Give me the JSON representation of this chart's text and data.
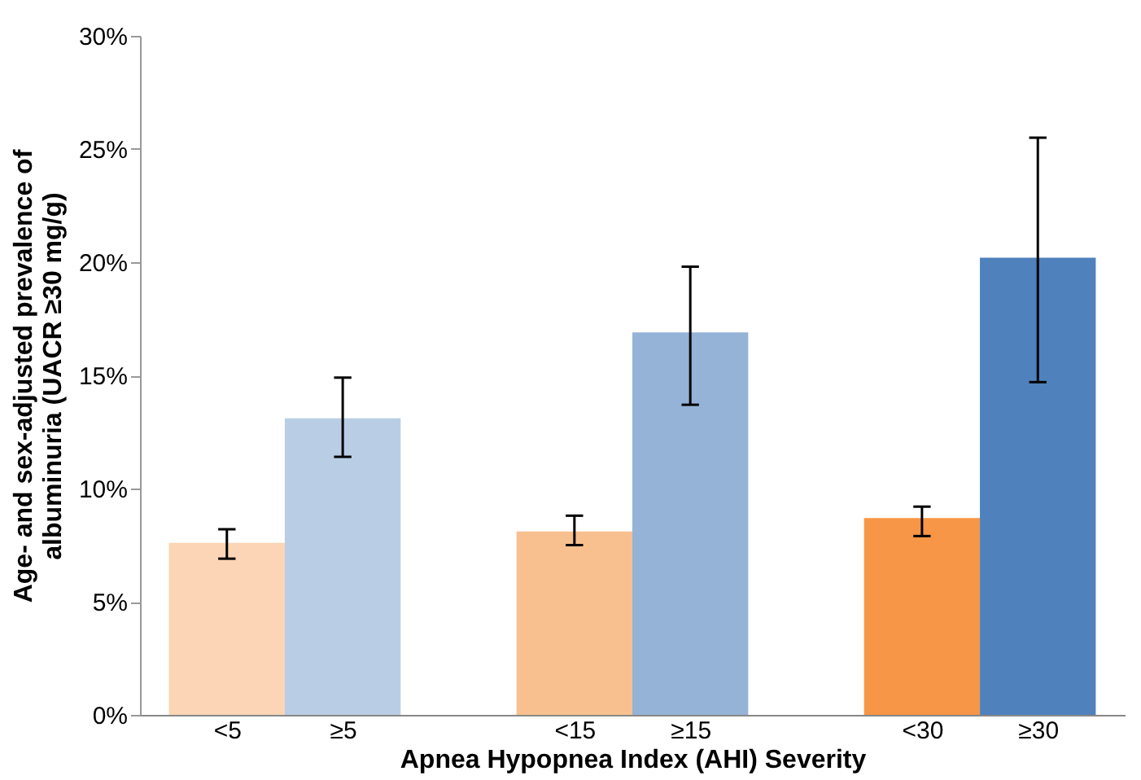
{
  "chart_data": {
    "type": "bar",
    "xlabel": "Apnea Hypopnea Index (AHI) Severity",
    "ylabel": "Age- and sex-adjusted prevalence of\nalbuminuria (UACR ≥30 mg/g)",
    "categories": [
      "<5",
      "≥5",
      "<15",
      "≥15",
      "<30",
      "≥30"
    ],
    "values": [
      7.6,
      13.1,
      8.1,
      16.9,
      8.7,
      20.2
    ],
    "colors": [
      "#fbd5b5",
      "#b9cde5",
      "#f9c08f",
      "#95b3d7",
      "#f79646",
      "#4f81bd"
    ],
    "errors": [
      [
        6.9,
        8.2
      ],
      [
        11.4,
        14.9
      ],
      [
        7.5,
        8.8
      ],
      [
        13.7,
        19.8
      ],
      [
        7.9,
        9.2
      ],
      [
        14.7,
        25.5
      ]
    ],
    "ylim": [
      0,
      30
    ],
    "yticks": [
      {
        "value": 0,
        "label": "0%"
      },
      {
        "value": 5,
        "label": "5%"
      },
      {
        "value": 10,
        "label": "10%"
      },
      {
        "value": 15,
        "label": "15%"
      },
      {
        "value": 20,
        "label": "20%"
      },
      {
        "value": 25,
        "label": "25%"
      },
      {
        "value": 30,
        "label": "30%"
      }
    ],
    "grid": false
  }
}
